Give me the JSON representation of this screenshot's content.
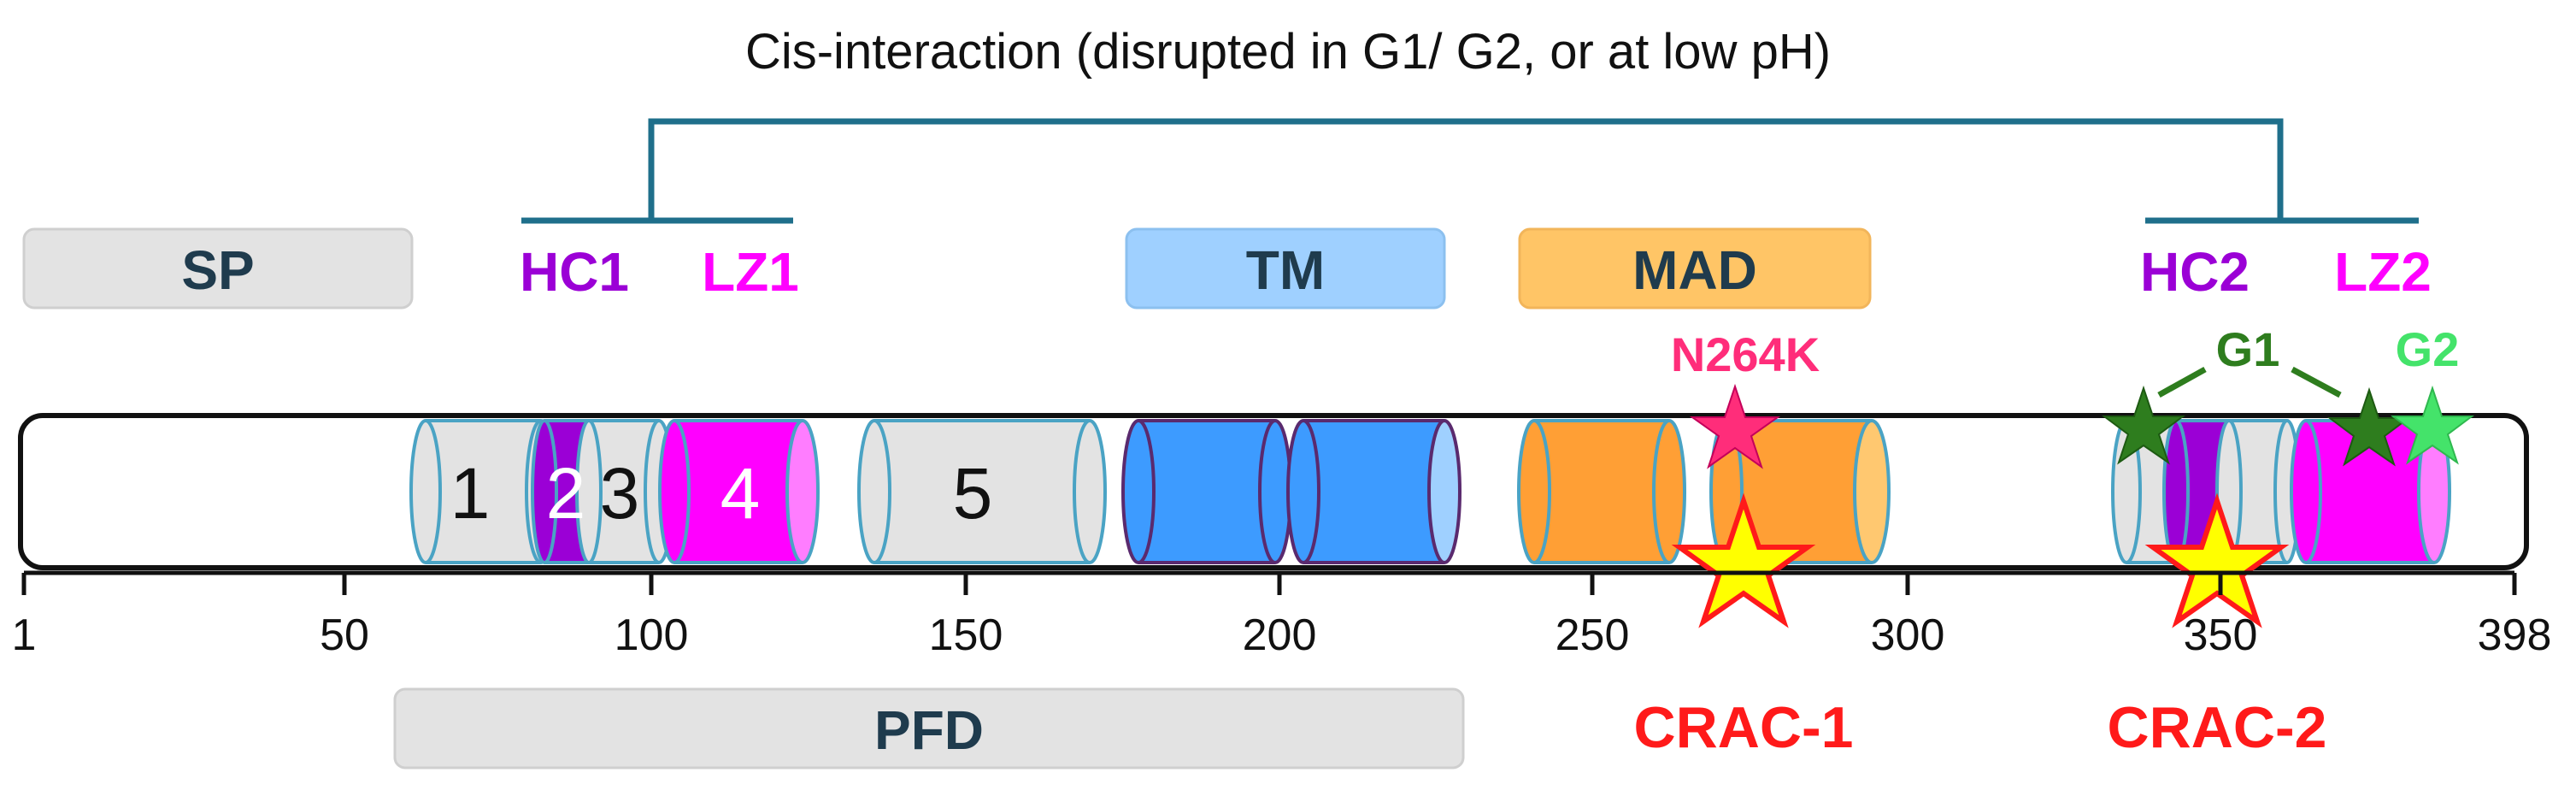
{
  "title": "Cis-interaction (disrupted in G1/ G2, or at low pH)",
  "regions": {
    "sp": "SP",
    "tm": "TM",
    "mad": "MAD",
    "pfd": "PFD"
  },
  "motifs": {
    "hc1": "HC1",
    "lz1": "LZ1",
    "hc2": "HC2",
    "lz2": "LZ2"
  },
  "helices": {
    "h1": "1",
    "h2": "2",
    "h3": "3",
    "h4": "4",
    "h5": "5"
  },
  "mutations": {
    "n264k": "N264K",
    "g1": "G1",
    "g2": "G2"
  },
  "crac": {
    "crac1": "CRAC-1",
    "crac2": "CRAC-2"
  },
  "axis": {
    "ticks": [
      "1",
      "50",
      "100",
      "150",
      "200",
      "250",
      "300",
      "350",
      "398"
    ]
  },
  "colors": {
    "gray": "#e3e3e3",
    "purple": "#9b00d6",
    "magenta": "#ff00ff",
    "blue": "#3d9bff",
    "lightblue": "#9fd0ff",
    "orange": "#ff9f35",
    "lightorange": "#ffc870",
    "bracket": "#1f6f8b",
    "crac_red": "#ff1a1a",
    "star_yellow": "#ffff00",
    "n264k_pink": "#ff2d7a",
    "g1_green": "#2e7d1e",
    "g2_green": "#44e36a"
  }
}
